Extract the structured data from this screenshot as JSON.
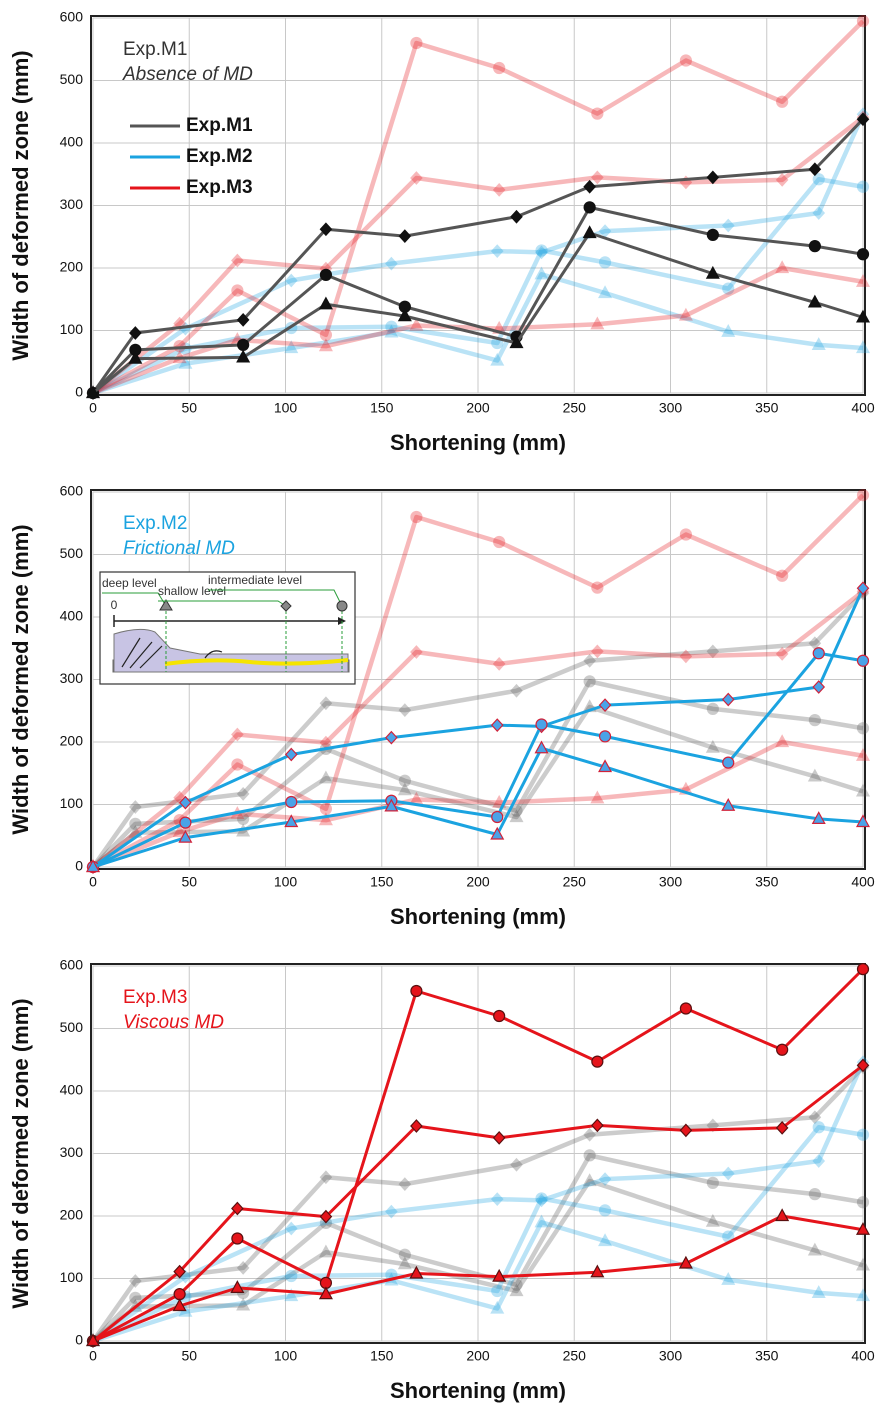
{
  "chart_data": {
    "type": "line",
    "x_label": "Shortening (mm)",
    "y_label": "Width of deformed zone (mm)",
    "xlim": [
      0,
      400
    ],
    "ylim": [
      0,
      600
    ],
    "xticks": [
      0,
      50,
      100,
      150,
      200,
      250,
      300,
      350,
      400
    ],
    "yticks": [
      0,
      100,
      200,
      300,
      400,
      500,
      600
    ],
    "grid": true,
    "experiments": [
      {
        "name": "Exp.M1",
        "color": "#555555",
        "marker_color": "#111111",
        "marker_edge": "#111111",
        "lines": [
          {
            "marker": "diamond",
            "x": [
              0,
              22,
              78,
              121,
              162,
              220,
              258,
              322,
              375,
              400
            ],
            "values": [
              0,
              96,
              117,
              262,
              251,
              282,
              330,
              345,
              358,
              438
            ]
          },
          {
            "marker": "circle",
            "x": [
              0,
              22,
              78,
              121,
              162,
              220,
              258,
              322,
              375,
              400
            ],
            "values": [
              0,
              69,
              77,
              189,
              138,
              90,
              297,
              253,
              235,
              222
            ]
          },
          {
            "marker": "triangle",
            "x": [
              0,
              22,
              78,
              121,
              162,
              220,
              258,
              322,
              375,
              400
            ],
            "values": [
              0,
              55,
              57,
              142,
              123,
              80,
              256,
              191,
              145,
              121
            ]
          }
        ]
      },
      {
        "name": "Exp.M2",
        "color": "#1ba3e0",
        "marker_color": "#4aa3e8",
        "marker_edge": "#d0223a",
        "lines": [
          {
            "marker": "diamond",
            "x": [
              0,
              48,
              103,
              155,
              210,
              233,
              266,
              330,
              377,
              400
            ],
            "values": [
              0,
              103,
              180,
              207,
              227,
              225,
              259,
              268,
              288,
              446
            ]
          },
          {
            "marker": "circle",
            "x": [
              0,
              48,
              103,
              155,
              210,
              233,
              266,
              330,
              377,
              400
            ],
            "values": [
              0,
              71,
              104,
              106,
              80,
              228,
              209,
              167,
              342,
              330
            ]
          },
          {
            "marker": "triangle",
            "x": [
              0,
              48,
              103,
              155,
              210,
              233,
              266,
              330,
              377,
              400
            ],
            "values": [
              0,
              47,
              72,
              97,
              52,
              190,
              160,
              98,
              77,
              72
            ]
          }
        ]
      },
      {
        "name": "Exp.M3",
        "color": "#e5141b",
        "marker_color": "#e5141b",
        "marker_edge": "#5a1010",
        "lines": [
          {
            "marker": "circle",
            "x": [
              0,
              45,
              75,
              121,
              168,
              211,
              262,
              308,
              358,
              400
            ],
            "values": [
              0,
              75,
              164,
              93,
              560,
              520,
              447,
              532,
              466,
              595
            ]
          },
          {
            "marker": "diamond",
            "x": [
              0,
              45,
              75,
              121,
              168,
              211,
              262,
              308,
              358,
              400
            ],
            "values": [
              0,
              111,
              212,
              199,
              344,
              325,
              345,
              337,
              341,
              441
            ]
          },
          {
            "marker": "triangle",
            "x": [
              0,
              45,
              75,
              121,
              168,
              211,
              262,
              308,
              358,
              400
            ],
            "values": [
              0,
              56,
              85,
              75,
              108,
              103,
              110,
              124,
              200,
              178
            ]
          }
        ]
      }
    ],
    "panels": [
      {
        "highlight": 0,
        "subtitle": "Absence of MD",
        "legend": true
      },
      {
        "highlight": 1,
        "subtitle": "Frictional MD",
        "legend": false,
        "inset": {
          "labels": [
            "deep level",
            "shallow level",
            "intermediate level"
          ],
          "origin": 0
        }
      },
      {
        "highlight": 2,
        "subtitle": "Viscous MD",
        "legend": false
      }
    ]
  }
}
